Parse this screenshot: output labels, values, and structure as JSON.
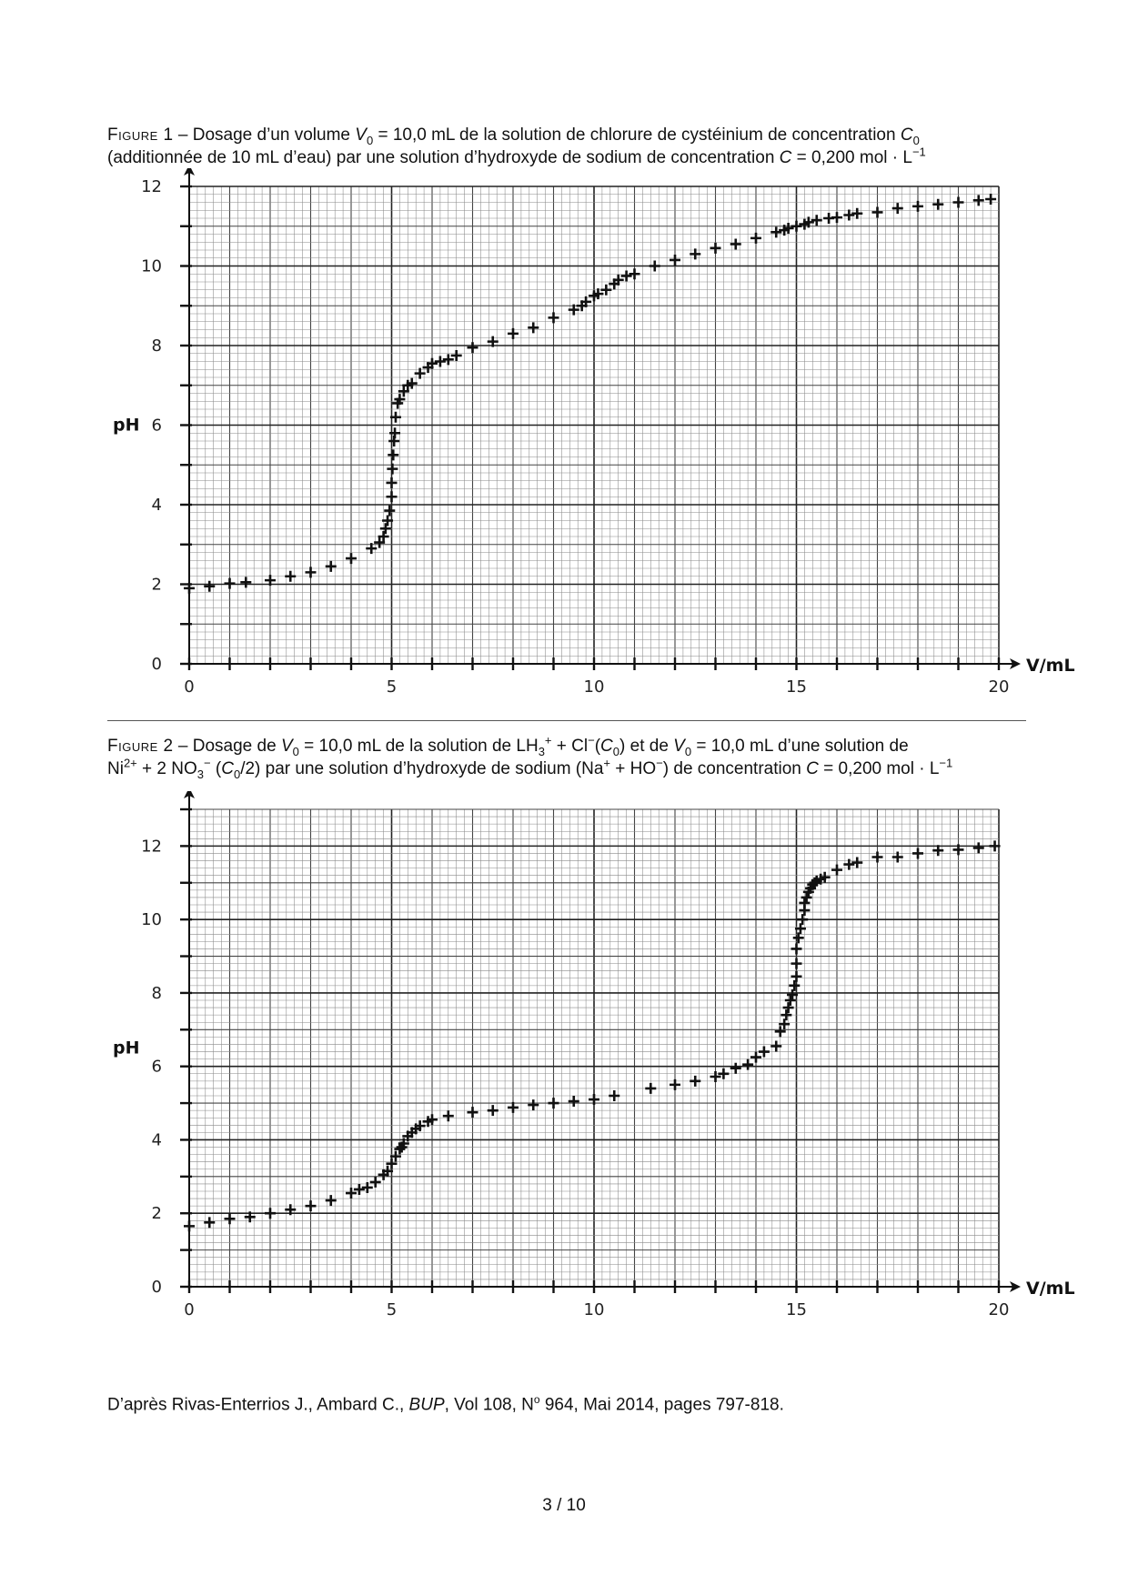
{
  "figure1": {
    "caption": {
      "label": "Figure 1",
      "dash": " – ",
      "line1_a": "Dosage d’un volume ",
      "v0_symbol": "V",
      "v0_sub": "0",
      "line1_b": " = 10,0 mL de la solution de chlorure de cystéinium de concentration ",
      "c0_symbol": "C",
      "c0_sub": "0",
      "line2_a": "(additionnée de 10 mL d’eau) par une solution d’hydroxyde de sodium de concentration ",
      "c_symbol": "C",
      "line2_b": " = 0,200 mol · L",
      "unit_sup": "−1"
    }
  },
  "figure2": {
    "caption": {
      "label": "Figure 2",
      "dash": " – ",
      "p1": "Dosage de ",
      "v0_symbol": "V",
      "v0_sub": "0",
      "p2": " = 10,0 mL de la solution de LH",
      "lh_sub": "3",
      "lh_sup": "+",
      "p3": " + Cl",
      "cl_sup": "−",
      "p4": "(",
      "c0_symbol": "C",
      "c0_sub": "0",
      "p5": ") et de ",
      "v0b_symbol": "V",
      "v0b_sub": "0",
      "p6": " = 10,0 mL d’une solution de",
      "p7": "Ni",
      "ni_sup": "2+",
      "p8": " + 2 NO",
      "no_sub": "3",
      "no_sup": "−",
      "p9": " (",
      "c0b_symbol": "C",
      "c0b_sub": "0",
      "p10": "/2) par une solution d’hydroxyde de sodium (Na",
      "na_sup": "+",
      "p11": " + HO",
      "ho_sup": "−",
      "p12": ") de concentration ",
      "c_symbol": "C",
      "p13": " = 0,200 mol · L",
      "unit_sup": "−1"
    }
  },
  "source": {
    "p1": "D’après Rivas-Enterrios J., Ambard C., ",
    "journal": "BUP",
    "p2": ", Vol 108, N",
    "no_sup": "o",
    "p3": " 964, Mai 2014, pages 797-818."
  },
  "page_number": "3 / 10",
  "chart_data": [
    {
      "type": "scatter",
      "marker": "plus",
      "xlabel": "V/mL",
      "ylabel": "pH",
      "xlim": [
        0,
        20
      ],
      "ylim": [
        0,
        12
      ],
      "xticks": [
        0,
        5,
        10,
        15,
        20
      ],
      "yticks": [
        0,
        2,
        4,
        6,
        8,
        10,
        12
      ],
      "grid": "millimetre",
      "color": "#111111",
      "x": [
        0,
        0.5,
        1,
        1.4,
        2,
        2.5,
        3,
        3.5,
        4,
        4.5,
        4.7,
        4.8,
        4.85,
        4.9,
        4.95,
        5,
        5,
        5.02,
        5.04,
        5.06,
        5.08,
        5.1,
        5.15,
        5.2,
        5.3,
        5.4,
        5.5,
        5.7,
        5.9,
        6,
        6.2,
        6.4,
        6.6,
        7,
        7.5,
        8,
        8.5,
        9,
        9.5,
        9.7,
        9.8,
        10,
        10.1,
        10.3,
        10.5,
        10.6,
        10.8,
        11,
        11.5,
        12,
        12.5,
        13,
        13.5,
        14,
        14.5,
        14.7,
        14.8,
        15,
        15.2,
        15.3,
        15.5,
        15.8,
        16,
        16.3,
        16.5,
        17,
        17.5,
        18,
        18.5,
        19,
        19.5,
        19.8
      ],
      "y": [
        1.9,
        1.95,
        2.02,
        2.05,
        2.1,
        2.2,
        2.3,
        2.45,
        2.65,
        2.9,
        3.05,
        3.2,
        3.4,
        3.6,
        3.85,
        4.2,
        4.55,
        4.9,
        5.25,
        5.6,
        5.8,
        6.2,
        6.55,
        6.65,
        6.85,
        7.0,
        7.05,
        7.3,
        7.45,
        7.55,
        7.6,
        7.65,
        7.75,
        7.95,
        8.1,
        8.3,
        8.45,
        8.7,
        8.9,
        9.0,
        9.1,
        9.25,
        9.3,
        9.4,
        9.55,
        9.65,
        9.75,
        9.8,
        10.0,
        10.15,
        10.3,
        10.45,
        10.55,
        10.7,
        10.85,
        10.9,
        10.95,
        11.0,
        11.05,
        11.1,
        11.15,
        11.2,
        11.22,
        11.28,
        11.32,
        11.35,
        11.45,
        11.5,
        11.55,
        11.6,
        11.65,
        11.68
      ]
    },
    {
      "type": "scatter",
      "marker": "plus",
      "xlabel": "V/mL",
      "ylabel": "pH",
      "xlim": [
        0,
        20
      ],
      "ylim": [
        0,
        13
      ],
      "xticks": [
        0,
        5,
        10,
        15,
        20
      ],
      "yticks": [
        0,
        2,
        4,
        6,
        8,
        10,
        12
      ],
      "grid": "millimetre",
      "color": "#111111",
      "x": [
        0,
        0.5,
        1,
        1.5,
        2,
        2.5,
        3,
        3.5,
        4,
        4.2,
        4.4,
        4.6,
        4.8,
        4.9,
        5,
        5.1,
        5.2,
        5.25,
        5.3,
        5.4,
        5.5,
        5.6,
        5.7,
        5.9,
        6,
        6.4,
        7,
        7.5,
        8,
        8.5,
        9,
        9.5,
        10,
        10.5,
        11.4,
        12,
        12.5,
        13,
        13.2,
        13.5,
        13.8,
        14,
        14.2,
        14.5,
        14.6,
        14.7,
        14.75,
        14.8,
        14.85,
        14.9,
        14.95,
        15,
        15,
        15,
        15.05,
        15.1,
        15.15,
        15.2,
        15.2,
        15.25,
        15.3,
        15.35,
        15.4,
        15.45,
        15.5,
        15.6,
        15.7,
        16,
        16.3,
        16.5,
        17,
        17.5,
        18,
        18.5,
        19,
        19.5,
        19.9
      ],
      "y": [
        1.65,
        1.75,
        1.85,
        1.9,
        2.0,
        2.1,
        2.2,
        2.35,
        2.55,
        2.65,
        2.7,
        2.85,
        3.05,
        3.15,
        3.35,
        3.55,
        3.75,
        3.8,
        3.9,
        4.1,
        4.2,
        4.3,
        4.38,
        4.5,
        4.55,
        4.65,
        4.75,
        4.8,
        4.88,
        4.95,
        5.0,
        5.05,
        5.1,
        5.2,
        5.4,
        5.5,
        5.6,
        5.72,
        5.8,
        5.95,
        6.05,
        6.25,
        6.4,
        6.55,
        6.95,
        7.15,
        7.4,
        7.6,
        7.8,
        7.95,
        8.2,
        8.45,
        8.8,
        9.2,
        9.5,
        9.75,
        10.0,
        10.25,
        10.45,
        10.6,
        10.75,
        10.85,
        10.95,
        11.0,
        11.05,
        11.1,
        11.15,
        11.35,
        11.5,
        11.55,
        11.7,
        11.7,
        11.8,
        11.88,
        11.9,
        11.95,
        12.0
      ]
    }
  ]
}
